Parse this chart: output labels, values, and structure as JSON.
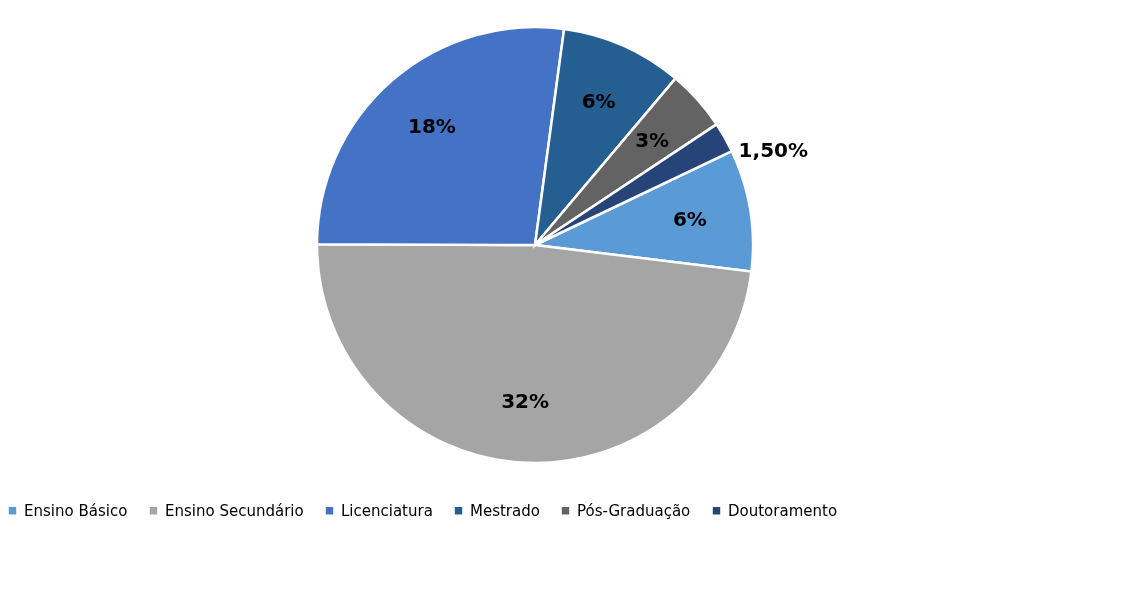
{
  "chart_data": {
    "type": "pie",
    "categories": [
      "Ensino Básico",
      "Ensino Secundário",
      "Licenciatura",
      "Mestrado",
      "Pós-Graduação",
      "Doutoramento"
    ],
    "values": [
      6,
      32,
      18,
      6,
      3,
      1.5
    ],
    "value_labels": [
      "6%",
      "32%",
      "18%",
      "6%",
      "3%",
      "1,50%"
    ],
    "colors": [
      "#5b9bd5",
      "#a5a5a5",
      "#4472c4",
      "#255e91",
      "#636363",
      "#264478"
    ],
    "legend": "bottom"
  }
}
